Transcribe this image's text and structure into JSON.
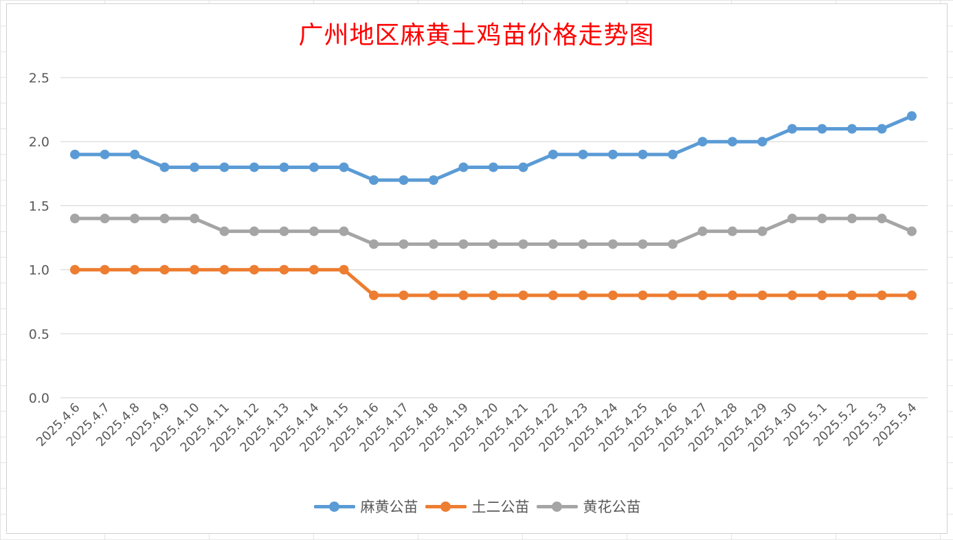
{
  "chart_data": {
    "type": "line",
    "title": "广州地区麻黄土鸡苗价格走势图",
    "xlabel": "",
    "ylabel": "",
    "ylim": [
      0,
      2.5
    ],
    "yticks": [
      "0.0",
      "0.5",
      "1.0",
      "1.5",
      "2.0",
      "2.5"
    ],
    "grid": true,
    "legend_position": "bottom",
    "categories": [
      "2025.4.6",
      "2025.4.7",
      "2025.4.8",
      "2025.4.9",
      "2025.4.10",
      "2025.4.11",
      "2025.4.12",
      "2025.4.13",
      "2025.4.14",
      "2025.4.15",
      "2025.4.16",
      "2025.4.17",
      "2025.4.18",
      "2025.4.19",
      "2025.4.20",
      "2025.4.21",
      "2025.4.22",
      "2025.4.23",
      "2025.4.24",
      "2025.4.25",
      "2025.4.26",
      "2025.4.27",
      "2025.4.28",
      "2025.4.29",
      "2025.4.30",
      "2025.5.1",
      "2025.5.2",
      "2025.5.3",
      "2025.5.4"
    ],
    "series": [
      {
        "name": "麻黄公苗",
        "color": "#5b9bd5",
        "values": [
          1.9,
          1.9,
          1.9,
          1.8,
          1.8,
          1.8,
          1.8,
          1.8,
          1.8,
          1.8,
          1.7,
          1.7,
          1.7,
          1.8,
          1.8,
          1.8,
          1.9,
          1.9,
          1.9,
          1.9,
          1.9,
          2.0,
          2.0,
          2.0,
          2.1,
          2.1,
          2.1,
          2.1,
          2.2
        ]
      },
      {
        "name": "土二公苗",
        "color": "#ed7d31",
        "values": [
          1.0,
          1.0,
          1.0,
          1.0,
          1.0,
          1.0,
          1.0,
          1.0,
          1.0,
          1.0,
          0.8,
          0.8,
          0.8,
          0.8,
          0.8,
          0.8,
          0.8,
          0.8,
          0.8,
          0.8,
          0.8,
          0.8,
          0.8,
          0.8,
          0.8,
          0.8,
          0.8,
          0.8,
          0.8
        ]
      },
      {
        "name": "黄花公苗",
        "color": "#a5a5a5",
        "values": [
          1.4,
          1.4,
          1.4,
          1.4,
          1.4,
          1.3,
          1.3,
          1.3,
          1.3,
          1.3,
          1.2,
          1.2,
          1.2,
          1.2,
          1.2,
          1.2,
          1.2,
          1.2,
          1.2,
          1.2,
          1.2,
          1.3,
          1.3,
          1.3,
          1.4,
          1.4,
          1.4,
          1.4,
          1.3
        ]
      }
    ]
  }
}
